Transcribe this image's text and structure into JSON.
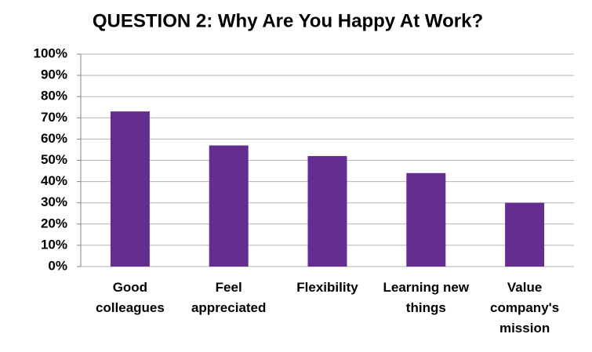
{
  "chart_data": {
    "type": "bar",
    "title": "QUESTION 2: Why Are You Happy At Work?",
    "categories": [
      "Good colleagues",
      "Feel appreciated",
      "Flexibility",
      "Learning new things",
      "Value company's mission"
    ],
    "values": [
      73,
      57,
      52,
      44,
      30
    ],
    "color": "#652d90",
    "ylim": [
      0,
      100
    ],
    "yticks": [
      {
        "value": 0,
        "label": "0%"
      },
      {
        "value": 10,
        "label": "10%"
      },
      {
        "value": 20,
        "label": "20%"
      },
      {
        "value": 30,
        "label": "30%"
      },
      {
        "value": 40,
        "label": "40%"
      },
      {
        "value": 50,
        "label": "50%"
      },
      {
        "value": 60,
        "label": "60%"
      },
      {
        "value": 70,
        "label": "70%"
      },
      {
        "value": 80,
        "label": "80%"
      },
      {
        "value": 90,
        "label": "90%"
      },
      {
        "value": 100,
        "label": "100%"
      }
    ],
    "grid": true
  }
}
